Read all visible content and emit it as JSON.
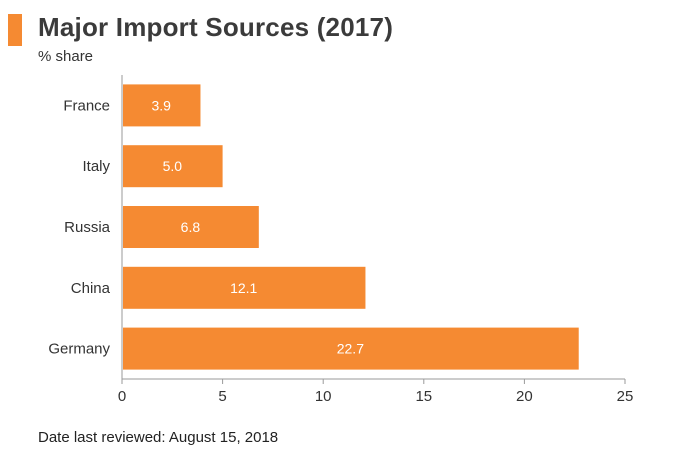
{
  "colors": {
    "accent": "#F58A32",
    "bar": "#F58A32",
    "axis": "#9a9a9a"
  },
  "chart_data": {
    "type": "bar",
    "orientation": "horizontal",
    "title": "Major Import Sources (2017)",
    "subtitle": "% share",
    "categories": [
      "France",
      "Italy",
      "Russia",
      "China",
      "Germany"
    ],
    "values": [
      3.9,
      5.0,
      6.8,
      12.1,
      22.7
    ],
    "value_labels": [
      "3.9",
      "5.0",
      "6.8",
      "12.1",
      "22.7"
    ],
    "xlim": [
      0,
      25
    ],
    "xticks": [
      0,
      5,
      10,
      15,
      20,
      25
    ],
    "xlabel": "",
    "ylabel": "",
    "grid": false
  },
  "footer": "Date last reviewed: August 15, 2018"
}
